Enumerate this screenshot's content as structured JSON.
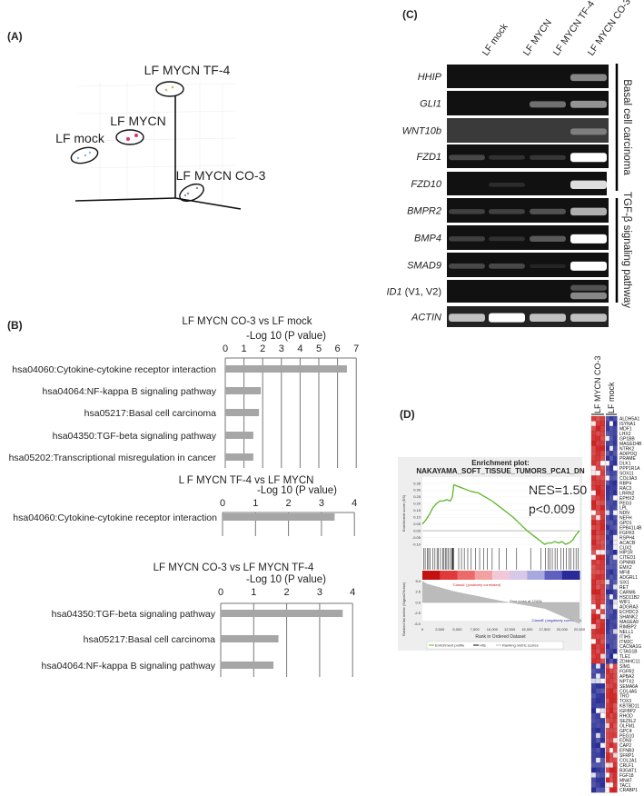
{
  "panels": {
    "a": "(A)",
    "b": "(B)",
    "c": "(C)",
    "d": "(D)"
  },
  "pca": {
    "groups": [
      "LF MYCN TF-4",
      "LF MYCN",
      "LF mock",
      "LF MYCN CO-3"
    ],
    "colors": {
      "LF MYCN TF-4": "#c8c060",
      "LF MYCN": "#e0306a",
      "LF mock": "#8ab4d8",
      "LF MYCN CO-3": "#8888a8"
    }
  },
  "gel": {
    "lanes": [
      "LF mock",
      "LF MYCN",
      "LF MYCN TF-4",
      "LF MYCN CO-3"
    ],
    "rows": [
      {
        "gene": "HHIP",
        "bands": [
          0,
          0,
          0,
          0.6
        ]
      },
      {
        "gene": "GLI1",
        "bands": [
          0,
          0,
          0.5,
          0.65
        ]
      },
      {
        "gene": "WNT10b",
        "bands": [
          0,
          0,
          0,
          0.5
        ]
      },
      {
        "gene": "FZD1",
        "bands": [
          0.3,
          0.15,
          0.2,
          1
        ]
      },
      {
        "gene": "FZD10",
        "bands": [
          0,
          0.12,
          0,
          0.9
        ]
      },
      {
        "gene": "BMPR2",
        "bands": [
          0.25,
          0.25,
          0.35,
          0.75
        ]
      },
      {
        "gene": "BMP4",
        "bands": [
          0.25,
          0.15,
          0.4,
          1
        ]
      },
      {
        "gene": "SMAD9",
        "bands": [
          0.3,
          0.3,
          0.05,
          1
        ]
      },
      {
        "gene": "ID1",
        "suffix": " (V1, V2)",
        "bands": [
          0,
          0,
          0,
          0.6
        ]
      },
      {
        "gene": "ACTIN",
        "bands": [
          0.8,
          1,
          0.8,
          0.8
        ]
      }
    ],
    "groups": [
      "Basal cell carcinoma",
      "TGF-β signaling pathway"
    ]
  },
  "chart_data": [
    {
      "type": "bar",
      "orientation": "horizontal",
      "title": "LF MYCN CO-3 vs LF mock",
      "xlabel": "-Log 10 (P value)",
      "xlim": [
        0,
        7
      ],
      "ticks": [
        "0",
        "1",
        "2",
        "3",
        "4",
        "5",
        "6",
        "7"
      ],
      "grid": true,
      "categories": [
        "hsa04060:Cytokine-cytokine receptor interaction",
        "hsa04064:NF-kappa B signaling pathway",
        "hsa05217:Basal cell carcinoma",
        "hsa04350:TGF-beta signaling pathway",
        "hsa05202:Transcriptional misregulation in cancer"
      ],
      "values": [
        6.5,
        1.9,
        1.8,
        1.5,
        1.5
      ],
      "color": "#a6a6a6"
    },
    {
      "type": "bar",
      "orientation": "horizontal",
      "title": "L F MYCN TF-4 vs LF MYCN",
      "xlabel": "-Log 10 (P value)",
      "xlim": [
        0,
        4
      ],
      "ticks": [
        "0",
        "1",
        "2",
        "3",
        "4"
      ],
      "grid": true,
      "categories": [
        "hsa04060:Cytokine-cytokine receptor interaction"
      ],
      "values": [
        3.4
      ],
      "color": "#a6a6a6"
    },
    {
      "type": "bar",
      "orientation": "horizontal",
      "title": "LF MYCN CO-3 vs LF MYCN TF-4",
      "xlabel": "-Log 10 (P value)",
      "xlim": [
        0,
        4
      ],
      "ticks": [
        "0",
        "1",
        "2",
        "3",
        "4"
      ],
      "grid": true,
      "categories": [
        "hsa04350:TGF-beta signaling pathway",
        "hsa05217:Basal cell carcinoma",
        "hsa04064:NF-kappa B signaling pathway"
      ],
      "values": [
        3.7,
        1.75,
        1.6
      ],
      "color": "#a6a6a6"
    },
    {
      "type": "line",
      "title": "Enrichment plot:",
      "subtitle": "NAKAYAMA_SOFT_TISSUE_TUMORS_PCA1_DN",
      "nes": "NES=1.50",
      "pvalue": "p<0.009",
      "ylabel": "Enrichment score (ES)",
      "ylabel2": "Ranked list metric (Signal2Noise)",
      "xlabel": "Rank in Ordered Dataset",
      "xlim": [
        0,
        22500
      ],
      "ylim": [
        -0.1,
        0.35
      ],
      "yticks": [
        "0.35",
        "0.30",
        "0.25",
        "0.20",
        "0.15",
        "0.10",
        "0.05",
        "0.00",
        "-0.05",
        "-0.10"
      ],
      "y2ticks": [
        "5.0",
        "2.5",
        "0.0",
        "-2.5",
        "-5.0"
      ],
      "xticks": [
        "0",
        "2,500",
        "5,000",
        "7,500",
        "10,000",
        "12,500",
        "15,000",
        "17,500",
        "20,000",
        "22,500"
      ],
      "x": [
        0,
        500,
        1000,
        1500,
        2000,
        2500,
        3000,
        3500,
        4000,
        4300,
        4500,
        5000,
        6000,
        7000,
        8000,
        9000,
        10000,
        11000,
        12000,
        13000,
        14000,
        15000,
        16000,
        17000,
        17500,
        18000,
        18500,
        19000,
        19500,
        20000,
        20500,
        21000,
        21500,
        22000,
        22500
      ],
      "y": [
        0.05,
        0.08,
        0.12,
        0.17,
        0.2,
        0.22,
        0.22,
        0.23,
        0.22,
        0.25,
        0.34,
        0.33,
        0.31,
        0.29,
        0.28,
        0.25,
        0.22,
        0.18,
        0.14,
        0.1,
        0.05,
        0.0,
        -0.04,
        -0.08,
        -0.1,
        -0.09,
        -0.09,
        -0.08,
        -0.09,
        -0.08,
        -0.1,
        -0.09,
        -0.07,
        -0.03,
        0.0
      ],
      "hits": [
        200,
        400,
        700,
        900,
        1100,
        1500,
        1800,
        2100,
        2300,
        2600,
        2900,
        3100,
        3300,
        3500,
        3700,
        4000,
        4200,
        4300,
        4400,
        4500,
        5200,
        5600,
        6000,
        6500,
        7000,
        7600,
        8200,
        8800,
        9300,
        10000,
        11000,
        12000,
        13500,
        15500,
        17000,
        17600,
        18000,
        18300,
        18600,
        19000,
        19300,
        19800,
        20200,
        20600,
        21000,
        21300,
        21700,
        22000,
        22300
      ],
      "zero_cross": "Zero cross at 12434",
      "class_a": "'ClassA' (positively correlated)",
      "class_b": "'ClassB' (negatively correlated)",
      "legend": [
        "Enrichment profile",
        "Hits",
        "Ranking metric scores"
      ],
      "colors": {
        "profile": "#5cb82a",
        "hits": "#000000",
        "metric": "#bbbbbb"
      }
    }
  ],
  "heatmap": {
    "columns": [
      "LF MYCN CO-3",
      "LF mock"
    ],
    "colors": {
      "high": "#d42020",
      "low": "#222a9a"
    },
    "genes": [
      "ALDH5A1",
      "ISYNA1",
      "MDF1",
      "LHX2",
      "GP1BB",
      "MAGED4B",
      "NTRK2",
      "ADIPOQ",
      "PRAME",
      "DLK1",
      "PPP1R1A",
      "SOX11",
      "COL9A3",
      "RBP4",
      "RAC3",
      "LRRN2",
      "EPHX2",
      "PEG3",
      "LPL",
      "NDN",
      "NEFH",
      "GPD1",
      "EPB41L4B",
      "FGFR3",
      "RSPH4",
      "ACACB",
      "CUX2",
      "HIP1R",
      "CITED1",
      "GPM6B",
      "EMX2",
      "MFI8",
      "ADGRL1",
      "SIX1",
      "RET",
      "CARM6",
      "HSD11B2",
      "WIF1",
      "ADGRA3",
      "ECHDC3",
      "SHANK2",
      "MAGEA9",
      "RIMBP2",
      "NELL1",
      "ITIH5",
      "ITM2C",
      "CACNA1G",
      "CTAG1B",
      "TLE1",
      "ZDHHC11",
      "SIM1",
      "FGFR2",
      "APBA2",
      "NPTX2",
      "SEMA6A",
      "COL4A5",
      "TRO",
      "TOX3",
      "KBTBD11",
      "IGFBP2",
      "RHOD",
      "SEZ6L2",
      "OLFM1",
      "GPC4",
      "PEG10",
      "EDN3",
      "CAP2",
      "EFNB3",
      "SFRP1",
      "COL2A1",
      "CRLF1",
      "B3GAT1",
      "FGF18",
      "MNAT",
      "TAC1",
      "CRABP1"
    ]
  }
}
